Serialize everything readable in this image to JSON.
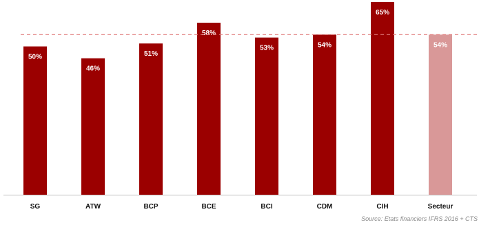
{
  "chart_data": {
    "type": "bar",
    "title": "",
    "xlabel": "",
    "ylabel": "",
    "categories": [
      "SG",
      "ATW",
      "BCP",
      "BCE",
      "BCI",
      "CDM",
      "CIH",
      "Secteur"
    ],
    "values": [
      50,
      46,
      51,
      58,
      53,
      54,
      65,
      54
    ],
    "value_labels": [
      "50%",
      "46%",
      "51%",
      "58%",
      "53%",
      "54%",
      "65%",
      "54%"
    ],
    "unit": "%",
    "ylim": [
      0,
      65
    ],
    "grid": false,
    "reference_line": {
      "value": 54,
      "style": "dashed",
      "color": "#e07b7b"
    },
    "colors": {
      "bar": "#9b0000",
      "highlight_bar": "#d99898",
      "label": "#ffffff",
      "axis": "#bfbfbf"
    },
    "highlight_category": "Secteur",
    "source": "Source: Etats financiers IFRS 2016 + CTS"
  }
}
